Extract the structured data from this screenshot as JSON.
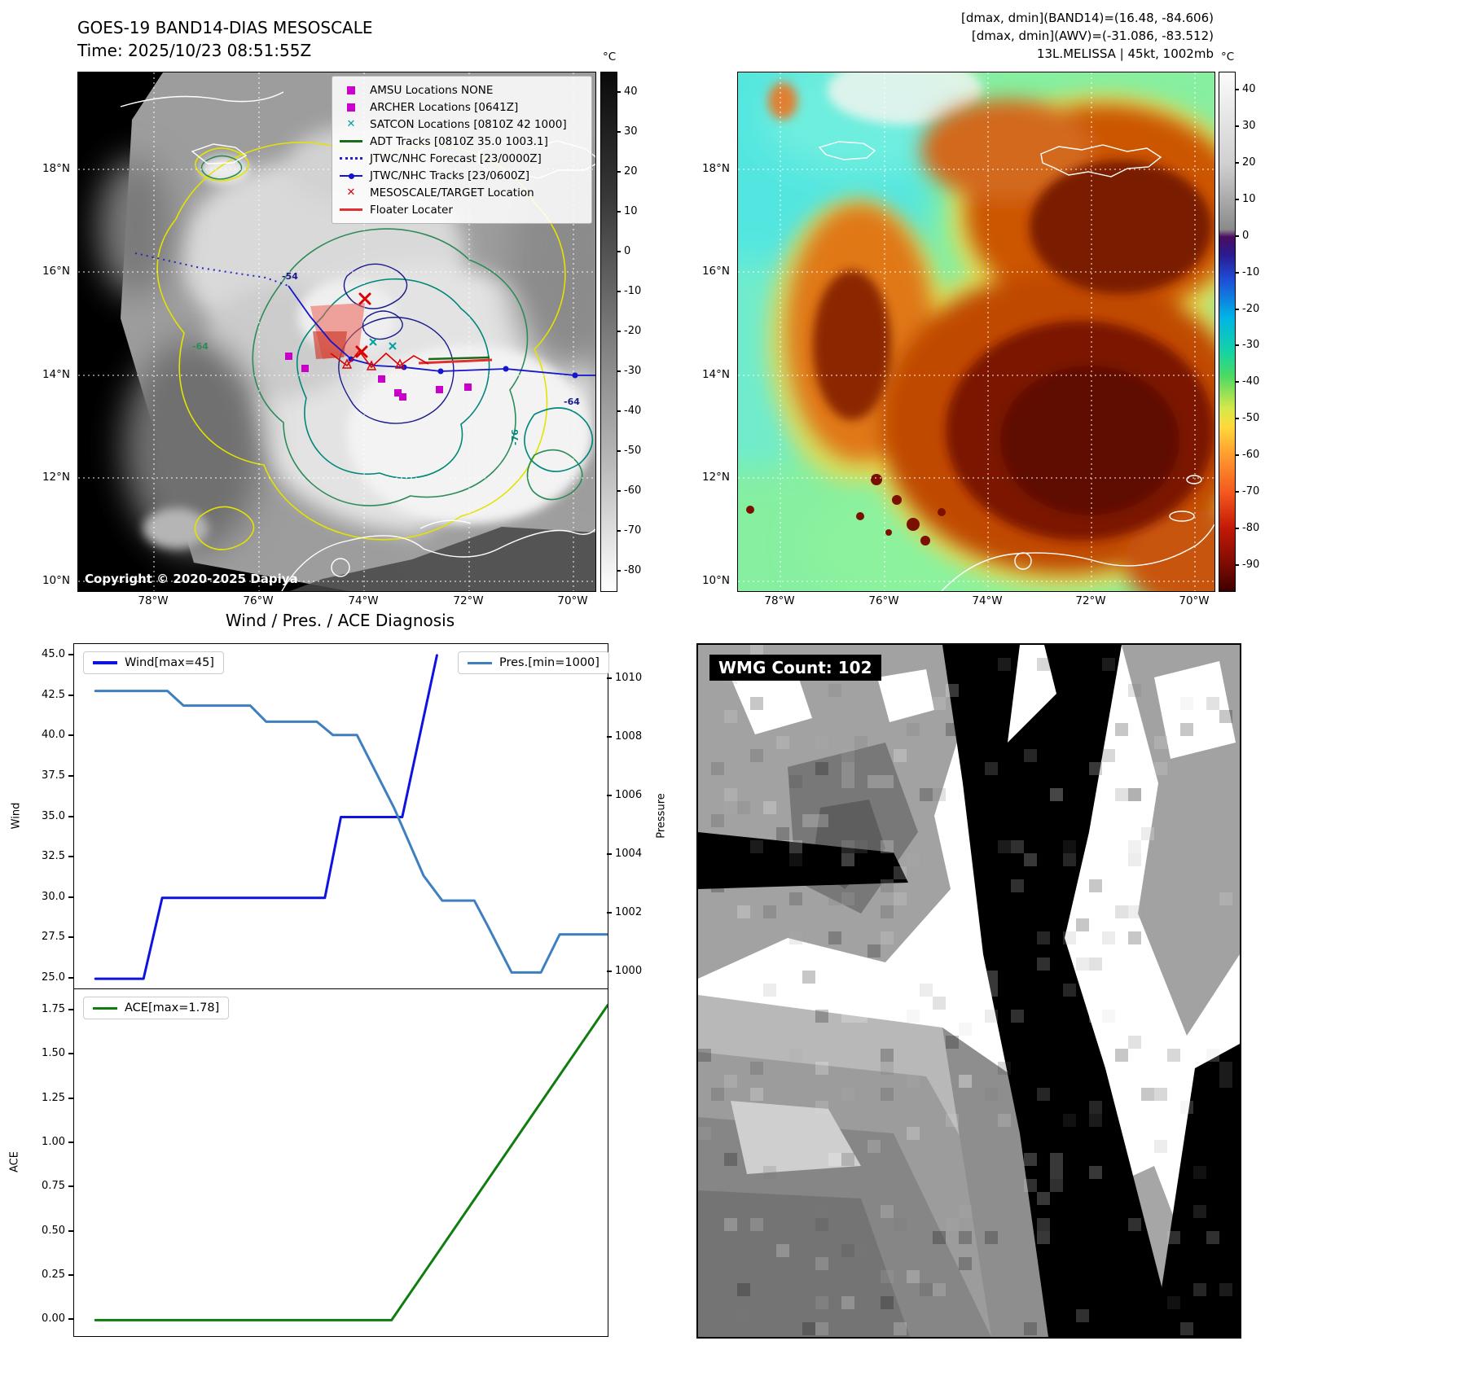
{
  "band14": {
    "title": "GOES-19 BAND14-DIAS MESOSCALE",
    "time_line": "Time: 2025/10/23 08:51:55Z",
    "copyright": "Copyright © 2020-2025 Dapiya",
    "colorbar_unit": "°C",
    "colorbar_ticks": [
      40,
      30,
      20,
      10,
      0,
      -10,
      -20,
      -30,
      -40,
      -50,
      -60,
      -70,
      -80
    ],
    "lat_ticks": [
      "18°N",
      "16°N",
      "14°N",
      "12°N",
      "10°N"
    ],
    "lon_ticks": [
      "78°W",
      "76°W",
      "74°W",
      "72°W",
      "70°W"
    ],
    "contour_labels": [
      "-54",
      "-64",
      "-76"
    ],
    "legend_items": [
      {
        "label": "AMSU Locations NONE",
        "marker": "square",
        "color": "#cc00cc"
      },
      {
        "label": "ARCHER Locations [0641Z]",
        "marker": "square",
        "color": "#cc00cc"
      },
      {
        "label": "SATCON Locations [0810Z 42 1000]",
        "marker": "x",
        "color": "#00a0a0"
      },
      {
        "label": "ADT Tracks [0810Z 35.0 1003.1]",
        "marker": "line",
        "color": "#1a6b1a"
      },
      {
        "label": "JTWC/NHC Forecast [23/0000Z]",
        "marker": "dotted-line",
        "color": "#2323cc"
      },
      {
        "label": "JTWC/NHC Tracks [23/0600Z]",
        "marker": "line-dot",
        "color": "#1515cc"
      },
      {
        "label": "MESOSCALE/TARGET Location",
        "marker": "x",
        "color": "#dd0000"
      },
      {
        "label": "Floater Locater",
        "marker": "line",
        "color": "#e03030"
      }
    ]
  },
  "awv": {
    "header_lines": [
      "[dmax, dmin](BAND14)=(16.48, -84.606)",
      "[dmax, dmin](AWV)=(-31.086, -83.512)",
      "13L.MELISSA | 45kt, 1002mb"
    ],
    "colorbar_unit": "°C",
    "colorbar_ticks": [
      40,
      30,
      20,
      10,
      0,
      -10,
      -20,
      -30,
      -40,
      -50,
      -60,
      -70,
      -80,
      -90
    ],
    "lat_ticks": [
      "18°N",
      "16°N",
      "14°N",
      "12°N",
      "10°N"
    ],
    "lon_ticks": [
      "78°W",
      "76°W",
      "74°W",
      "72°W",
      "70°W"
    ]
  },
  "diagnosis_title": "Wind / Pres. / ACE Diagnosis",
  "wmg": {
    "label": "WMG Count: 102"
  },
  "chart_data": [
    {
      "type": "line",
      "title": "Wind / Pres. / ACE Diagnosis",
      "x_range": [
        0,
        1
      ],
      "grid": false,
      "left_axis": {
        "label": "Wind",
        "tick_labels": [
          "25.0",
          "27.5",
          "30.0",
          "32.5",
          "35.0",
          "37.5",
          "40.0",
          "42.5",
          "45.0"
        ],
        "lim": [
          24.3,
          45.7
        ]
      },
      "right_axis": {
        "label": "Pressure",
        "tick_labels": [
          "1000",
          "1002",
          "1004",
          "1006",
          "1008",
          "1010"
        ],
        "lim": [
          999.4,
          1011.2
        ]
      },
      "series": [
        {
          "name": "Wind[max=45]",
          "color": "#0f13e0",
          "axis": "left",
          "x": [
            0.04,
            0.13,
            0.165,
            0.47,
            0.5,
            0.615,
            0.68
          ],
          "y": [
            25,
            25,
            30,
            30,
            35,
            35,
            45
          ]
        },
        {
          "name": "Pres.[min=1000]",
          "color": "#3f7fbf",
          "axis": "right",
          "x": [
            0.04,
            0.175,
            0.205,
            0.33,
            0.36,
            0.455,
            0.485,
            0.53,
            0.6,
            0.655,
            0.69,
            0.75,
            0.775,
            0.82,
            0.875,
            0.91,
            1.0
          ],
          "y": [
            1009.6,
            1009.6,
            1009.1,
            1009.1,
            1008.55,
            1008.55,
            1008.1,
            1008.1,
            1005.6,
            1003.3,
            1002.45,
            1002.45,
            1001.6,
            1000.0,
            1000.0,
            1001.3,
            1001.3
          ]
        }
      ],
      "legend": [
        "Wind[max=45]",
        "Pres.[min=1000]"
      ],
      "legend_positions": [
        "upper-left",
        "upper-right"
      ]
    },
    {
      "type": "line",
      "x_range": [
        0,
        1
      ],
      "grid": false,
      "left_axis": {
        "label": "ACE",
        "tick_labels": [
          "0.00",
          "0.25",
          "0.50",
          "0.75",
          "1.00",
          "1.25",
          "1.50",
          "1.75"
        ],
        "lim": [
          -0.09,
          1.87
        ]
      },
      "series": [
        {
          "name": "ACE[max=1.78]",
          "color": "#0f7d0f",
          "axis": "left",
          "x": [
            0.04,
            0.595,
            1.0
          ],
          "y": [
            0.0,
            0.0,
            1.78
          ]
        }
      ],
      "legend": [
        "ACE[max=1.78]"
      ],
      "legend_positions": [
        "upper-left"
      ]
    }
  ]
}
